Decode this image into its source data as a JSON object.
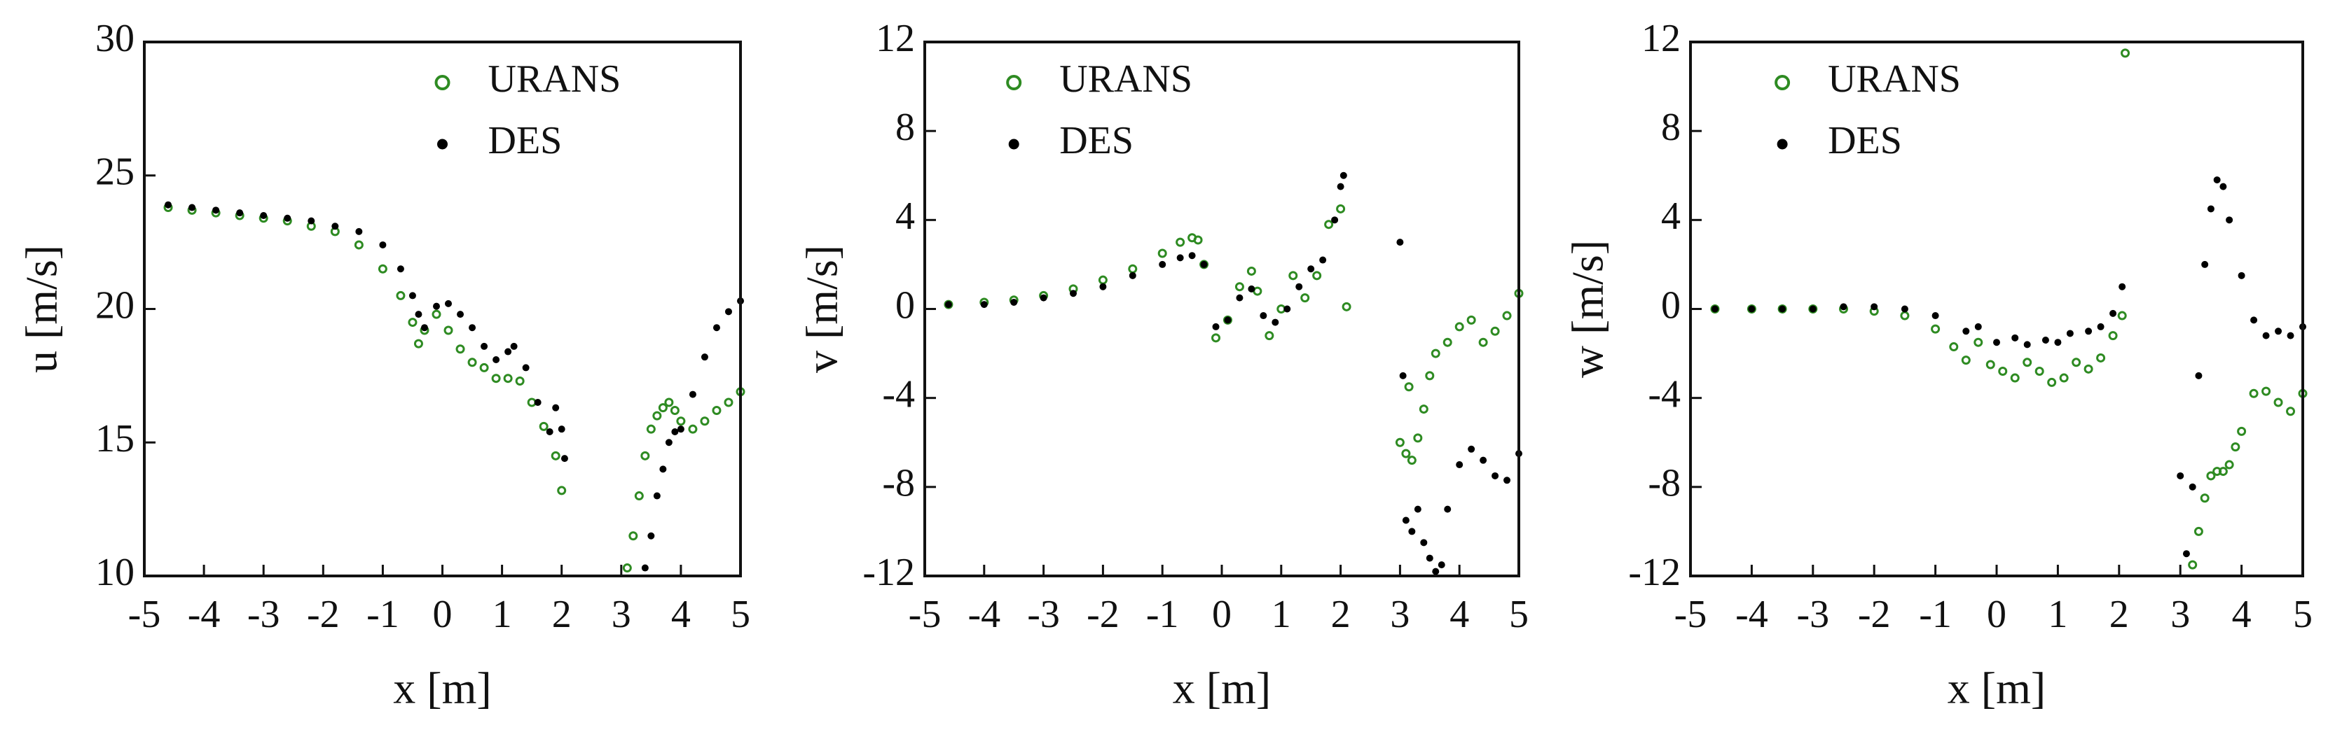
{
  "chart_data": [
    {
      "type": "scatter",
      "xlabel": "x [m]",
      "ylabel": "u [m/s]",
      "xlim": [
        -5,
        5
      ],
      "ylim": [
        10,
        30
      ],
      "xticks": [
        -5,
        -4,
        -3,
        -2,
        -1,
        0,
        1,
        2,
        3,
        4,
        5
      ],
      "yticks": [
        10,
        15,
        20,
        25,
        30
      ],
      "legend": "upper right",
      "series": [
        {
          "name": "URANS",
          "color": "#2e8b22",
          "marker": "open",
          "x": [
            -4.6,
            -4.2,
            -3.8,
            -3.4,
            -3.0,
            -2.6,
            -2.2,
            -1.8,
            -1.4,
            -1.0,
            -0.7,
            -0.5,
            -0.4,
            -0.3,
            -0.1,
            0.1,
            0.3,
            0.5,
            0.7,
            0.9,
            1.1,
            1.3,
            1.5,
            1.7,
            1.9,
            2.0,
            3.1,
            3.2,
            3.3,
            3.4,
            3.5,
            3.6,
            3.7,
            3.8,
            3.9,
            4.0,
            4.2,
            4.4,
            4.6,
            4.8,
            5.0
          ],
          "values": [
            23.8,
            23.7,
            23.6,
            23.5,
            23.4,
            23.3,
            23.1,
            22.9,
            22.4,
            21.5,
            20.5,
            19.5,
            18.7,
            19.2,
            19.8,
            19.2,
            18.5,
            18.0,
            17.8,
            17.4,
            17.4,
            17.3,
            16.5,
            15.6,
            14.5,
            13.2,
            10.3,
            11.5,
            13.0,
            14.5,
            15.5,
            16.0,
            16.3,
            16.5,
            16.2,
            15.8,
            15.5,
            15.8,
            16.2,
            16.5,
            16.9
          ]
        },
        {
          "name": "DES",
          "color": "#000000",
          "marker": "filled",
          "x": [
            -4.6,
            -4.2,
            -3.8,
            -3.4,
            -3.0,
            -2.6,
            -2.2,
            -1.8,
            -1.4,
            -1.0,
            -0.7,
            -0.5,
            -0.4,
            -0.3,
            -0.1,
            0.1,
            0.3,
            0.5,
            0.7,
            0.9,
            1.1,
            1.2,
            1.4,
            1.6,
            1.8,
            1.9,
            2.0,
            2.05,
            3.4,
            3.5,
            3.6,
            3.7,
            3.8,
            3.9,
            4.0,
            4.2,
            4.4,
            4.6,
            4.8,
            5.0
          ],
          "values": [
            23.9,
            23.8,
            23.7,
            23.6,
            23.5,
            23.4,
            23.3,
            23.1,
            22.9,
            22.4,
            21.5,
            20.5,
            19.8,
            19.3,
            20.1,
            20.2,
            19.8,
            19.3,
            18.6,
            18.1,
            18.4,
            18.6,
            17.8,
            16.5,
            15.4,
            16.3,
            15.5,
            14.4,
            10.3,
            11.5,
            13.0,
            14.0,
            15.0,
            15.4,
            15.5,
            16.8,
            18.2,
            19.3,
            19.9,
            20.3
          ]
        }
      ]
    },
    {
      "type": "scatter",
      "xlabel": "x [m]",
      "ylabel": "v [m/s]",
      "xlim": [
        -5,
        5
      ],
      "ylim": [
        -12,
        12
      ],
      "xticks": [
        -5,
        -4,
        -3,
        -2,
        -1,
        0,
        1,
        2,
        3,
        4,
        5
      ],
      "yticks": [
        -12,
        -8,
        -4,
        0,
        4,
        8,
        12
      ],
      "legend": "upper left",
      "series": [
        {
          "name": "URANS",
          "color": "#2e8b22",
          "marker": "open",
          "x": [
            -4.6,
            -4.0,
            -3.5,
            -3.0,
            -2.5,
            -2.0,
            -1.5,
            -1.0,
            -0.7,
            -0.5,
            -0.4,
            -0.3,
            -0.1,
            0.1,
            0.3,
            0.5,
            0.6,
            0.8,
            1.0,
            1.2,
            1.4,
            1.6,
            1.8,
            2.0,
            2.1,
            3.0,
            3.1,
            3.15,
            3.2,
            3.3,
            3.4,
            3.5,
            3.6,
            3.8,
            4.0,
            4.2,
            4.4,
            4.6,
            4.8,
            5.0
          ],
          "values": [
            0.2,
            0.3,
            0.4,
            0.6,
            0.9,
            1.3,
            1.8,
            2.5,
            3.0,
            3.2,
            3.1,
            2.0,
            -1.3,
            -0.5,
            1.0,
            1.7,
            0.8,
            -1.2,
            0.0,
            1.5,
            0.5,
            1.5,
            3.8,
            4.5,
            0.1,
            -6.0,
            -6.5,
            -3.5,
            -6.8,
            -5.8,
            -4.5,
            -3.0,
            -2.0,
            -1.5,
            -0.8,
            -0.5,
            -1.5,
            -1.0,
            -0.3,
            0.7
          ]
        },
        {
          "name": "DES",
          "color": "#000000",
          "marker": "filled",
          "x": [
            -4.6,
            -4.0,
            -3.5,
            -3.0,
            -2.5,
            -2.0,
            -1.5,
            -1.0,
            -0.7,
            -0.5,
            -0.3,
            -0.1,
            0.1,
            0.3,
            0.5,
            0.7,
            0.9,
            1.1,
            1.3,
            1.5,
            1.7,
            1.9,
            2.0,
            2.05,
            3.0,
            3.05,
            3.1,
            3.2,
            3.3,
            3.4,
            3.5,
            3.6,
            3.7,
            3.8,
            4.0,
            4.2,
            4.4,
            4.6,
            4.8,
            5.0
          ],
          "values": [
            0.2,
            0.2,
            0.3,
            0.5,
            0.7,
            1.0,
            1.5,
            2.0,
            2.3,
            2.4,
            2.0,
            -0.8,
            -0.5,
            0.5,
            0.9,
            -0.3,
            -0.6,
            0.0,
            1.0,
            1.8,
            2.2,
            4.0,
            5.5,
            6.0,
            3.0,
            -3.0,
            -9.5,
            -10.0,
            -9.0,
            -10.5,
            -11.2,
            -11.8,
            -11.5,
            -9.0,
            -7.0,
            -6.3,
            -6.8,
            -7.5,
            -7.7,
            -6.5
          ]
        }
      ]
    },
    {
      "type": "scatter",
      "xlabel": "x [m]",
      "ylabel": "w [m/s]",
      "xlim": [
        -5,
        5
      ],
      "ylim": [
        -12,
        12
      ],
      "xticks": [
        -5,
        -4,
        -3,
        -2,
        -1,
        0,
        1,
        2,
        3,
        4,
        5
      ],
      "yticks": [
        -12,
        -8,
        -4,
        0,
        4,
        8,
        12
      ],
      "legend": "upper left",
      "series": [
        {
          "name": "URANS",
          "color": "#2e8b22",
          "marker": "open",
          "x": [
            -4.6,
            -4.0,
            -3.5,
            -3.0,
            -2.5,
            -2.0,
            -1.5,
            -1.0,
            -0.7,
            -0.5,
            -0.3,
            -0.1,
            0.1,
            0.3,
            0.5,
            0.7,
            0.9,
            1.1,
            1.3,
            1.5,
            1.7,
            1.9,
            2.05,
            2.1,
            3.2,
            3.3,
            3.4,
            3.5,
            3.6,
            3.7,
            3.8,
            3.9,
            4.0,
            4.2,
            4.4,
            4.6,
            4.8,
            5.0
          ],
          "values": [
            0,
            0,
            0,
            0,
            0,
            -0.1,
            -0.3,
            -0.9,
            -1.7,
            -2.3,
            -1.5,
            -2.5,
            -2.8,
            -3.1,
            -2.4,
            -2.8,
            -3.3,
            -3.1,
            -2.4,
            -2.7,
            -2.2,
            -1.2,
            -0.3,
            11.5,
            -11.5,
            -10.0,
            -8.5,
            -7.5,
            -7.3,
            -7.3,
            -7.0,
            -6.2,
            -5.5,
            -3.8,
            -3.7,
            -4.2,
            -4.6,
            -3.8
          ]
        },
        {
          "name": "DES",
          "color": "#000000",
          "marker": "filled",
          "x": [
            -4.6,
            -4.0,
            -3.5,
            -3.0,
            -2.5,
            -2.0,
            -1.5,
            -1.0,
            -0.5,
            -0.3,
            0.0,
            0.3,
            0.5,
            0.8,
            1.0,
            1.2,
            1.5,
            1.7,
            1.9,
            2.05,
            3.0,
            3.1,
            3.2,
            3.3,
            3.4,
            3.5,
            3.6,
            3.7,
            3.8,
            4.0,
            4.2,
            4.4,
            4.6,
            4.8,
            5.0
          ],
          "values": [
            0,
            0,
            0,
            0,
            0.1,
            0.1,
            0,
            -0.3,
            -1.0,
            -0.8,
            -1.5,
            -1.3,
            -1.6,
            -1.4,
            -1.5,
            -1.1,
            -1.0,
            -0.8,
            -0.2,
            1.0,
            -7.5,
            -11.0,
            -8.0,
            -3.0,
            2.0,
            4.5,
            5.8,
            5.5,
            4.0,
            1.5,
            -0.5,
            -1.2,
            -1.0,
            -1.2,
            -0.8
          ]
        }
      ]
    }
  ]
}
